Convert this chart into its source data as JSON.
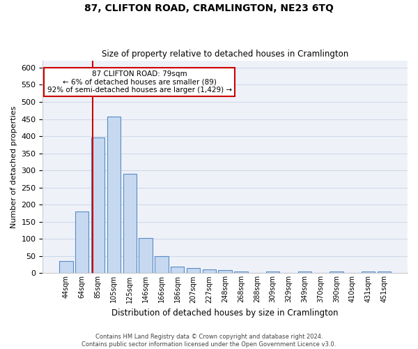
{
  "title": "87, CLIFTON ROAD, CRAMLINGTON, NE23 6TQ",
  "subtitle": "Size of property relative to detached houses in Cramlington",
  "xlabel": "Distribution of detached houses by size in Cramlington",
  "ylabel": "Number of detached properties",
  "bar_labels": [
    "44sqm",
    "64sqm",
    "85sqm",
    "105sqm",
    "125sqm",
    "146sqm",
    "166sqm",
    "186sqm",
    "207sqm",
    "227sqm",
    "248sqm",
    "268sqm",
    "288sqm",
    "309sqm",
    "329sqm",
    "349sqm",
    "370sqm",
    "390sqm",
    "410sqm",
    "431sqm",
    "451sqm"
  ],
  "bar_values": [
    35,
    180,
    395,
    458,
    290,
    103,
    50,
    20,
    15,
    10,
    8,
    5,
    0,
    5,
    0,
    5,
    0,
    5,
    0,
    5,
    5
  ],
  "bar_color": "#c6d9f0",
  "bar_edge_color": "#5a8ac6",
  "ylim": [
    0,
    620
  ],
  "yticks": [
    0,
    50,
    100,
    150,
    200,
    250,
    300,
    350,
    400,
    450,
    500,
    550,
    600
  ],
  "red_line_color": "#cc0000",
  "annotation_text_line1": "87 CLIFTON ROAD: 79sqm",
  "annotation_text_line2": "← 6% of detached houses are smaller (89)",
  "annotation_text_line3": "92% of semi-detached houses are larger (1,429) →",
  "annotation_box_color": "#ffffff",
  "annotation_box_edge_color": "#cc0000",
  "grid_color": "#d0d8e8",
  "bg_color": "#eef2f8",
  "footer_line1": "Contains HM Land Registry data © Crown copyright and database right 2024.",
  "footer_line2": "Contains public sector information licensed under the Open Government Licence v3.0."
}
